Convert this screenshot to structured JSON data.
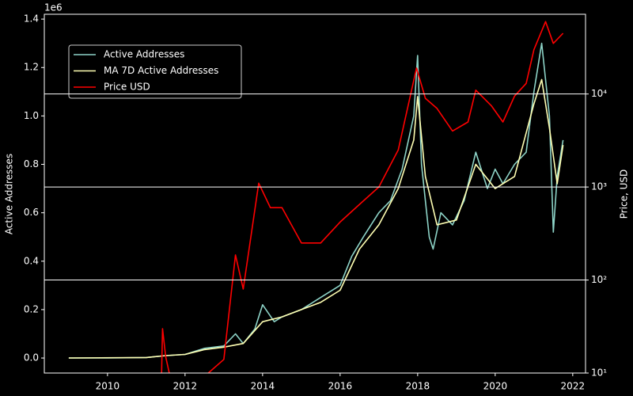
{
  "chart_data": {
    "type": "line",
    "xlabel": null,
    "ylabel": "Active Addresses",
    "y2label": "Price, USD",
    "y_offset_label": "1e6",
    "xlim": [
      2008.37,
      2022.33
    ],
    "xticks": [
      2010,
      2012,
      2014,
      2016,
      2018,
      2020,
      2022
    ],
    "ylim": [
      -0.062,
      1.42
    ],
    "yticks": [
      {
        "value": 0,
        "label": "0.0"
      },
      0.2,
      0.4,
      0.6,
      0.8,
      {
        "value": 1,
        "label": "1.0"
      },
      1.2,
      1.4
    ],
    "y2lim": [
      10,
      72000
    ],
    "y2scale": "log",
    "y2ticks": [
      {
        "value": 10,
        "label": "10¹"
      },
      {
        "value": 100,
        "label": "10²"
      },
      {
        "value": 1000,
        "label": "10³"
      },
      {
        "value": 10000,
        "label": "10⁴"
      }
    ],
    "grid": "y2",
    "legend": "upper left",
    "series": [
      {
        "name": "Active Addresses",
        "color": "#8dd3c7",
        "x": [
          2009.0,
          2010.0,
          2011.0,
          2011.5,
          2012.0,
          2012.5,
          2013.0,
          2013.3,
          2013.5,
          2013.8,
          2014.0,
          2014.3,
          2014.5,
          2015.0,
          2015.5,
          2016.0,
          2016.3,
          2016.6,
          2017.0,
          2017.3,
          2017.6,
          2017.9,
          2018.0,
          2018.1,
          2018.3,
          2018.4,
          2018.6,
          2018.9,
          2019.2,
          2019.5,
          2019.8,
          2020.0,
          2020.2,
          2020.5,
          2020.8,
          2021.0,
          2021.2,
          2021.4,
          2021.5,
          2021.6,
          2021.75
        ],
        "values": [
          0,
          0,
          0.002,
          0.01,
          0.015,
          0.04,
          0.05,
          0.1,
          0.06,
          0.12,
          0.22,
          0.15,
          0.17,
          0.2,
          0.25,
          0.3,
          0.42,
          0.5,
          0.6,
          0.65,
          0.78,
          1.0,
          1.25,
          0.8,
          0.5,
          0.45,
          0.6,
          0.55,
          0.65,
          0.85,
          0.7,
          0.78,
          0.72,
          0.8,
          0.85,
          1.1,
          1.3,
          1.0,
          0.52,
          0.75,
          0.9
        ]
      },
      {
        "name": "MA 7D Active Addresses",
        "color": "#ffffb3",
        "x": [
          2009.0,
          2011.0,
          2011.5,
          2012.0,
          2012.5,
          2013.0,
          2013.5,
          2014.0,
          2014.5,
          2015.0,
          2015.5,
          2016.0,
          2016.5,
          2017.0,
          2017.5,
          2017.9,
          2018.0,
          2018.2,
          2018.5,
          2019.0,
          2019.5,
          2020.0,
          2020.5,
          2021.0,
          2021.2,
          2021.4,
          2021.6,
          2021.75
        ],
        "values": [
          0,
          0.002,
          0.01,
          0.015,
          0.035,
          0.045,
          0.06,
          0.15,
          0.17,
          0.2,
          0.23,
          0.28,
          0.45,
          0.55,
          0.7,
          0.9,
          1.08,
          0.75,
          0.55,
          0.57,
          0.8,
          0.7,
          0.75,
          1.05,
          1.15,
          0.95,
          0.72,
          0.88
        ]
      },
      {
        "name": "Price USD",
        "color": "#ff0000",
        "axis": "y2",
        "x": [
          2011.38,
          2011.42,
          2011.5,
          2011.8,
          2012.3,
          2012.6,
          2013.0,
          2013.3,
          2013.5,
          2013.9,
          2014.2,
          2014.5,
          2015.0,
          2015.5,
          2016.0,
          2016.5,
          2017.0,
          2017.5,
          2017.97,
          2018.2,
          2018.5,
          2018.9,
          2019.3,
          2019.5,
          2019.9,
          2020.2,
          2020.5,
          2020.8,
          2021.0,
          2021.3,
          2021.5,
          2021.75
        ],
        "values": [
          5,
          30,
          15,
          4,
          6,
          10,
          14,
          186,
          80,
          1100,
          600,
          600,
          250,
          250,
          420,
          650,
          1000,
          2500,
          19000,
          9000,
          7000,
          4000,
          5000,
          11000,
          7500,
          5000,
          9500,
          13000,
          30000,
          60000,
          35000,
          45000
        ]
      }
    ]
  }
}
